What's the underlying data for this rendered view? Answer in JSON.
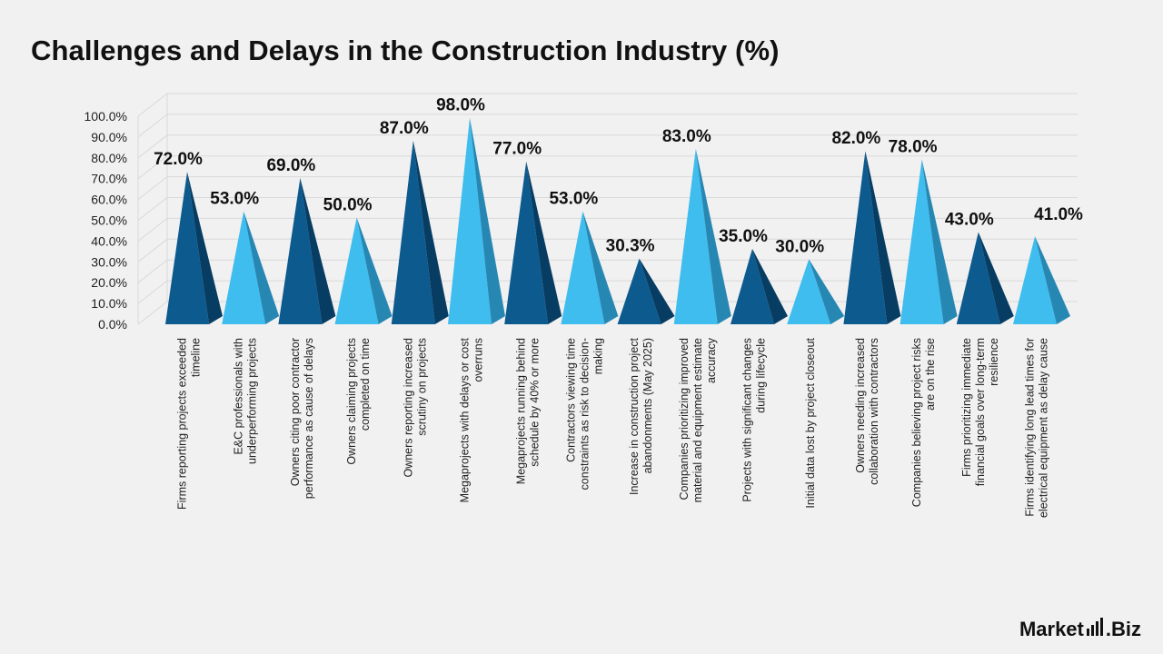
{
  "title": "Challenges and Delays in the Construction Industry (%)",
  "brand": {
    "part1": "Market",
    "part2": ".Biz"
  },
  "colors": {
    "dark_front": "#0d5a8e",
    "dark_side": "#083d63",
    "light_front": "#3fbdee",
    "light_side": "#2787b3",
    "grid": "#d9d9d9"
  },
  "chart_data": {
    "type": "bar",
    "bar_shape": "3d-pyramid",
    "title": "Challenges and Delays in the Construction Industry (%)",
    "xlabel": "",
    "ylabel": "",
    "ylim": [
      0,
      100
    ],
    "yticks": [
      "0.0%",
      "10.0%",
      "20.0%",
      "30.0%",
      "40.0%",
      "50.0%",
      "60.0%",
      "70.0%",
      "80.0%",
      "90.0%",
      "100.0%"
    ],
    "grid": true,
    "categories": [
      [
        "Firms reporting projects exceeded",
        "timeline"
      ],
      [
        "E&C professionals with",
        "underperforming projects"
      ],
      [
        "Owners citing poor contractor",
        "performance as cause of delays"
      ],
      [
        "Owners claiming projects",
        "completed on time"
      ],
      [
        "Owners reporting increased",
        "scrutiny on projects"
      ],
      [
        "Megaprojects with delays or cost",
        "overruns"
      ],
      [
        "Megaprojects running behind",
        "schedule by 40% or more"
      ],
      [
        "Contractors viewing time",
        "constraints as risk to decision-",
        "making"
      ],
      [
        "Increase in construction project",
        "abandonments (May 2025)"
      ],
      [
        "Companies prioritizing improved",
        "material and equipment estimate",
        "accuracy"
      ],
      [
        "Projects with significant changes",
        "during lifecycle"
      ],
      [
        "Initial data lost by project closeout"
      ],
      [
        "Owners needing increased",
        "collaboration with contractors"
      ],
      [
        "Companies believing project risks",
        "are on the rise"
      ],
      [
        "Firms prioritizing immediate",
        "financial goals over long-term",
        "resilience"
      ],
      [
        "Firms identifying long lead times for",
        "electrical equipment as delay cause"
      ]
    ],
    "values": [
      72.0,
      53.0,
      69.0,
      50.0,
      87.0,
      98.0,
      77.0,
      53.0,
      30.3,
      83.0,
      35.0,
      30.0,
      82.0,
      78.0,
      43.0,
      41.0
    ],
    "value_labels": [
      "72.0%",
      "53.0%",
      "69.0%",
      "50.0%",
      "87.0%",
      "98.0%",
      "77.0%",
      "53.0%",
      "30.3%",
      "83.0%",
      "35.0%",
      "30.0%",
      "82.0%",
      "78.0%",
      "43.0%",
      "41.0%"
    ],
    "color_pattern": [
      "dark",
      "light",
      "dark",
      "light",
      "dark",
      "light",
      "dark",
      "light",
      "dark",
      "light",
      "dark",
      "light",
      "dark",
      "light",
      "dark",
      "light"
    ]
  }
}
